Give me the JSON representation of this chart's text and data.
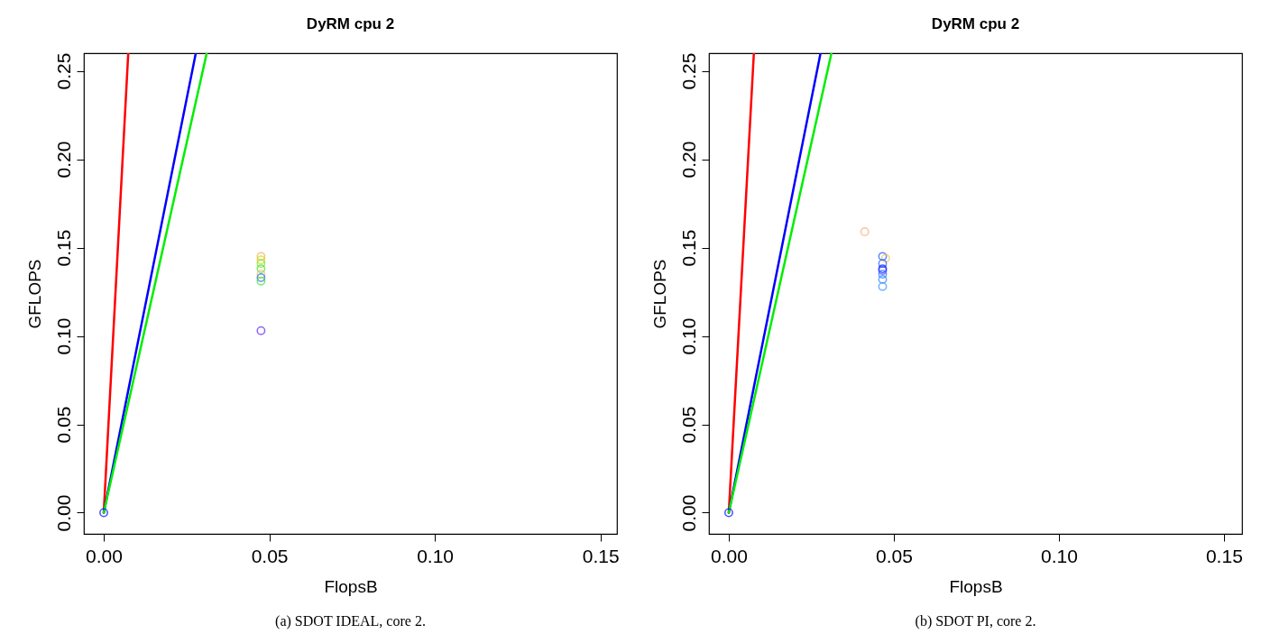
{
  "chart_data": [
    {
      "type": "scatter",
      "title": "DyRM cpu  2",
      "xlabel": "FlopsB",
      "ylabel": "GFLOPS",
      "grid": false,
      "xlim": [
        -0.006,
        0.155
      ],
      "ylim": [
        -0.012,
        0.26
      ],
      "xticks": [
        {
          "value": 0,
          "label": "0.00"
        },
        {
          "value": 0.05,
          "label": "0.05"
        },
        {
          "value": 0.1,
          "label": "0.10"
        },
        {
          "value": 0.15,
          "label": "0.15"
        }
      ],
      "yticks": [
        {
          "value": 0,
          "label": "0.00"
        },
        {
          "value": 0.05,
          "label": "0.05"
        },
        {
          "value": 0.1,
          "label": "0.10"
        },
        {
          "value": 0.15,
          "label": "0.15"
        },
        {
          "value": 0.2,
          "label": "0.20"
        },
        {
          "value": 0.25,
          "label": "0.25"
        }
      ],
      "series": [
        {
          "type": "line",
          "color": "#ff0000",
          "x": [
            0,
            0.0074
          ],
          "values": [
            0,
            0.26
          ]
        },
        {
          "type": "line",
          "color": "#0000ff",
          "x": [
            0,
            0.0278
          ],
          "values": [
            0,
            0.26
          ]
        },
        {
          "type": "line",
          "color": "#00ee00",
          "x": [
            0,
            0.0311
          ],
          "values": [
            0,
            0.26
          ]
        },
        {
          "marker": "circle",
          "x": [
            0,
            0.0475,
            0.0475,
            0.0475,
            0.0475,
            0.0475,
            0.0475,
            0.0475,
            0.0475
          ],
          "values": [
            0,
            0.145,
            0.143,
            0.141,
            0.138,
            0.135,
            0.133,
            0.131,
            0.103
          ],
          "colors": [
            "#0000ff",
            "#f0b050",
            "#c8e000",
            "#80e020",
            "#40e040",
            "#f0c060",
            "#2060ff",
            "#30e030",
            "#6020ff"
          ]
        }
      ],
      "annotations": [
        "(a) SDOT IDEAL, core 2."
      ]
    },
    {
      "type": "scatter",
      "title": "DyRM cpu  2",
      "xlabel": "FlopsB",
      "ylabel": "GFLOPS",
      "grid": false,
      "xlim": [
        -0.006,
        0.1555
      ],
      "ylim": [
        -0.012,
        0.26
      ],
      "xticks": [
        {
          "value": 0,
          "label": "0.00"
        },
        {
          "value": 0.05,
          "label": "0.05"
        },
        {
          "value": 0.1,
          "label": "0.10"
        },
        {
          "value": 0.15,
          "label": "0.15"
        }
      ],
      "yticks": [
        {
          "value": 0,
          "label": "0.00"
        },
        {
          "value": 0.05,
          "label": "0.05"
        },
        {
          "value": 0.1,
          "label": "0.10"
        },
        {
          "value": 0.15,
          "label": "0.15"
        },
        {
          "value": 0.2,
          "label": "0.20"
        },
        {
          "value": 0.25,
          "label": "0.25"
        }
      ],
      "series": [
        {
          "type": "line",
          "color": "#ff0000",
          "x": [
            0,
            0.0076
          ],
          "values": [
            0,
            0.26
          ]
        },
        {
          "type": "line",
          "color": "#0000ff",
          "x": [
            0,
            0.0278
          ],
          "values": [
            0,
            0.26
          ]
        },
        {
          "type": "line",
          "color": "#00ee00",
          "x": [
            0,
            0.0311
          ],
          "values": [
            0,
            0.26
          ]
        },
        {
          "marker": "circle",
          "x": [
            0,
            0.0412,
            0.0466,
            0.0475,
            0.0466,
            0.0466,
            0.0466,
            0.0466,
            0.0466,
            0.0466
          ],
          "values": [
            0,
            0.159,
            0.145,
            0.144,
            0.141,
            0.138,
            0.137,
            0.135,
            0.132,
            0.128
          ],
          "colors": [
            "#0000ff",
            "#f5b070",
            "#2050ff",
            "#f0c060",
            "#1060ff",
            "#0000ff",
            "#2040ff",
            "#3070ff",
            "#3080ff",
            "#3090ff"
          ]
        }
      ],
      "annotations": [
        "(b) SDOT PI, core 2."
      ]
    }
  ]
}
